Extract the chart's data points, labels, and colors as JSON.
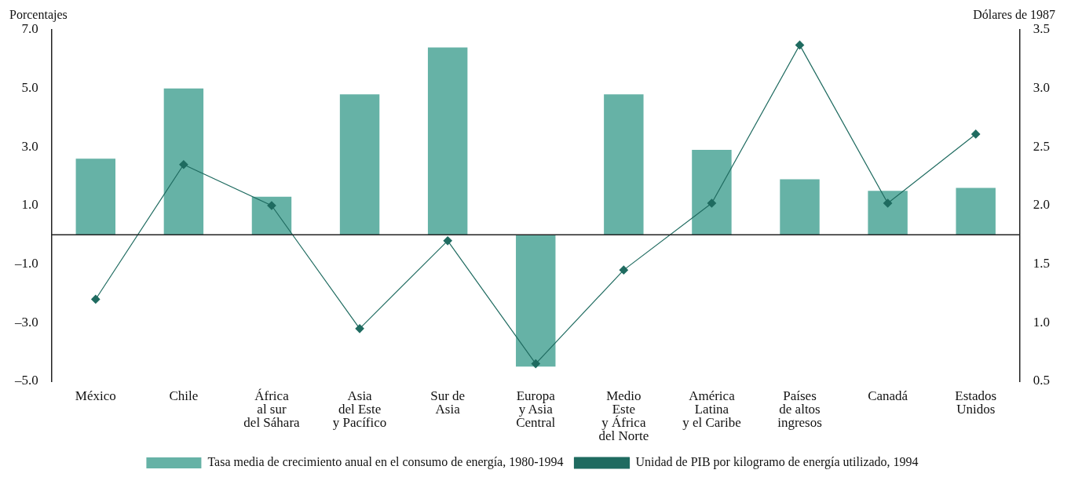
{
  "chart_data": {
    "type": "bar",
    "ylabel": "Porcentajes",
    "y2label": "Dólares de 1987",
    "categories": [
      "México",
      "Chile",
      "África\nal sur\ndel Sáhara",
      "Asia\ndel Este\ny Pacífico",
      "Sur de\nAsia",
      "Europa\ny Asia\nCentral",
      "Medio\nEste\ny África\ndel Norte",
      "América\nLatina\ny el Caribe",
      "Países\nde altos\ningresos",
      "Canadá",
      "Estados\nUnidos"
    ],
    "series": [
      {
        "name": "Tasa media de crecimiento anual en el consumo de energía, 1980-1994",
        "color": "#66b2a6",
        "values": [
          2.6,
          5.0,
          1.3,
          4.8,
          6.4,
          -4.5,
          4.8,
          2.9,
          1.9,
          1.5,
          1.6
        ]
      },
      {
        "name": "Unidad de PIB por kilogramo de energía utilizado, 1994",
        "type": "line",
        "axis": "y2",
        "color": "#1f6b60",
        "marker": "diamond",
        "values": [
          1.2,
          2.35,
          2.0,
          0.95,
          1.7,
          0.65,
          1.45,
          2.02,
          3.37,
          2.02,
          2.61
        ]
      }
    ],
    "ylim": [
      -5,
      7
    ],
    "yticks": [
      {
        "value": -5,
        "label": "–5.0"
      },
      {
        "value": -3,
        "label": "–3.0"
      },
      {
        "value": -1,
        "label": "–1.0"
      },
      {
        "value": 1,
        "label": "1.0"
      },
      {
        "value": 3,
        "label": "3.0"
      },
      {
        "value": 5,
        "label": "5.0"
      },
      {
        "value": 7,
        "label": "7.0"
      }
    ],
    "y2lim": [
      0.5,
      3.5
    ],
    "y2ticks": [
      {
        "value": 0.5,
        "label": "0.5"
      },
      {
        "value": 1,
        "label": "1.0"
      },
      {
        "value": 1.5,
        "label": "1.5"
      },
      {
        "value": 2,
        "label": "2.0"
      },
      {
        "value": 2.5,
        "label": "2.5"
      },
      {
        "value": 3,
        "label": "3.0"
      },
      {
        "value": 3.5,
        "label": "3.5"
      }
    ],
    "legend": "bottom"
  }
}
